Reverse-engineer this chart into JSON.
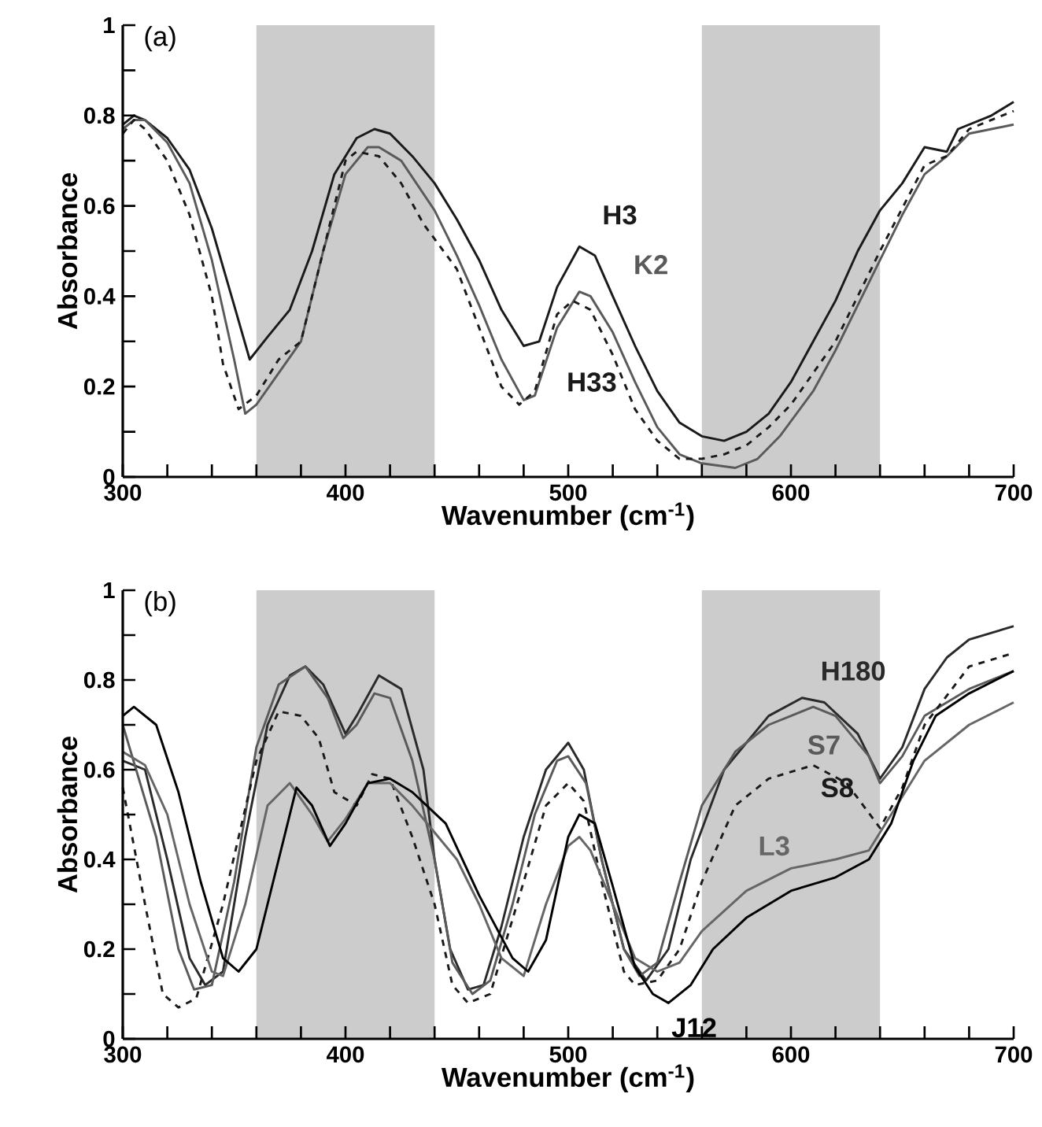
{
  "chart_data": [
    {
      "type": "line",
      "xlabel": "Wavenumber (cm$^{-1}$)",
      "ylabel": "Absorbance",
      "annotations": [
        "(a)"
      ],
      "xlim": [
        300,
        700
      ],
      "ylim": [
        0,
        1
      ],
      "xticks": [
        300,
        {
          "value": 320,
          "label": null
        },
        {
          "value": 340,
          "label": null
        },
        {
          "value": 360,
          "label": null
        },
        {
          "value": 380,
          "label": null
        },
        400,
        {
          "value": 420,
          "label": null
        },
        {
          "value": 440,
          "label": null
        },
        {
          "value": 460,
          "label": null
        },
        {
          "value": 480,
          "label": null
        },
        500,
        {
          "value": 520,
          "label": null
        },
        {
          "value": 540,
          "label": null
        },
        {
          "value": 560,
          "label": null
        },
        {
          "value": 580,
          "label": null
        },
        600,
        {
          "value": 620,
          "label": null
        },
        {
          "value": 640,
          "label": null
        },
        {
          "value": 660,
          "label": null
        },
        {
          "value": 680,
          "label": null
        },
        700
      ],
      "yticks": [
        0,
        {
          "value": 0.1,
          "label": null
        },
        {
          "value": 0.2,
          "label": "0.2"
        },
        {
          "value": 0.3,
          "label": null
        },
        {
          "value": 0.4,
          "label": "0.4"
        },
        {
          "value": 0.5,
          "label": null
        },
        {
          "value": 0.6,
          "label": "0.6"
        },
        {
          "value": 0.7,
          "label": null
        },
        {
          "value": 0.8,
          "label": "0.8"
        },
        {
          "value": 0.9,
          "label": null
        },
        1
      ],
      "bands": [
        {
          "axis": "x",
          "from": 360,
          "to": 440,
          "color": "#cccccc"
        },
        {
          "axis": "x",
          "from": 560,
          "to": 640,
          "color": "#cccccc"
        }
      ],
      "grid": false,
      "marker": "none",
      "series": [
        {
          "name": "H3",
          "color": "#1a1a1a",
          "line_style": "solid",
          "x": [
            300,
            305,
            310,
            320,
            330,
            340,
            350,
            357,
            365,
            375,
            385,
            395,
            405,
            413,
            420,
            430,
            440,
            450,
            460,
            470,
            480,
            487,
            495,
            505,
            512,
            520,
            530,
            540,
            550,
            560,
            570,
            580,
            590,
            600,
            610,
            620,
            630,
            640,
            650,
            660,
            670,
            675,
            690,
            700
          ],
          "values": [
            0.78,
            0.8,
            0.79,
            0.75,
            0.68,
            0.55,
            0.38,
            0.26,
            0.31,
            0.37,
            0.5,
            0.67,
            0.75,
            0.77,
            0.76,
            0.71,
            0.65,
            0.57,
            0.48,
            0.37,
            0.29,
            0.3,
            0.42,
            0.51,
            0.49,
            0.4,
            0.29,
            0.19,
            0.12,
            0.09,
            0.08,
            0.1,
            0.14,
            0.21,
            0.3,
            0.39,
            0.5,
            0.59,
            0.65,
            0.73,
            0.72,
            0.77,
            0.8,
            0.83
          ]
        },
        {
          "name": "K2",
          "color": "#5a5a5a",
          "line_style": "solid",
          "x": [
            300,
            305,
            310,
            320,
            330,
            340,
            350,
            355,
            360,
            370,
            380,
            390,
            400,
            410,
            415,
            425,
            440,
            450,
            460,
            470,
            480,
            485,
            495,
            505,
            510,
            520,
            530,
            540,
            550,
            560,
            575,
            585,
            595,
            610,
            620,
            630,
            640,
            650,
            660,
            670,
            680,
            690,
            700
          ],
          "values": [
            0.77,
            0.79,
            0.79,
            0.74,
            0.65,
            0.48,
            0.26,
            0.14,
            0.16,
            0.23,
            0.3,
            0.5,
            0.67,
            0.73,
            0.73,
            0.7,
            0.59,
            0.49,
            0.38,
            0.26,
            0.17,
            0.18,
            0.33,
            0.41,
            0.4,
            0.32,
            0.21,
            0.11,
            0.05,
            0.03,
            0.02,
            0.04,
            0.09,
            0.19,
            0.28,
            0.38,
            0.48,
            0.58,
            0.67,
            0.71,
            0.76,
            0.77,
            0.78
          ]
        },
        {
          "name": "H33",
          "color": "#1a1a1a",
          "line_style": "dashed",
          "x": [
            300,
            305,
            310,
            320,
            330,
            340,
            345,
            352,
            360,
            370,
            380,
            390,
            400,
            405,
            415,
            425,
            435,
            450,
            460,
            470,
            478,
            485,
            495,
            502,
            510,
            520,
            530,
            540,
            550,
            560,
            570,
            580,
            590,
            600,
            620,
            640,
            660,
            670,
            680,
            700
          ],
          "values": [
            0.76,
            0.79,
            0.77,
            0.7,
            0.58,
            0.4,
            0.25,
            0.15,
            0.18,
            0.26,
            0.3,
            0.5,
            0.7,
            0.72,
            0.71,
            0.65,
            0.56,
            0.46,
            0.33,
            0.2,
            0.16,
            0.19,
            0.36,
            0.39,
            0.37,
            0.27,
            0.15,
            0.08,
            0.04,
            0.04,
            0.05,
            0.07,
            0.11,
            0.16,
            0.3,
            0.5,
            0.69,
            0.71,
            0.77,
            0.81
          ]
        }
      ]
    },
    {
      "type": "line",
      "xlabel": "Wavenumber (cm$^{-1}$)",
      "ylabel": "Absorbance",
      "annotations": [
        "(b)"
      ],
      "xlim": [
        300,
        700
      ],
      "ylim": [
        0,
        1
      ],
      "xticks": [
        300,
        {
          "value": 320,
          "label": null
        },
        {
          "value": 340,
          "label": null
        },
        {
          "value": 360,
          "label": null
        },
        {
          "value": 380,
          "label": null
        },
        400,
        {
          "value": 420,
          "label": null
        },
        {
          "value": 440,
          "label": null
        },
        {
          "value": 460,
          "label": null
        },
        {
          "value": 480,
          "label": null
        },
        500,
        {
          "value": 520,
          "label": null
        },
        {
          "value": 540,
          "label": null
        },
        {
          "value": 560,
          "label": null
        },
        {
          "value": 580,
          "label": null
        },
        600,
        {
          "value": 620,
          "label": null
        },
        {
          "value": 640,
          "label": null
        },
        {
          "value": 660,
          "label": null
        },
        {
          "value": 680,
          "label": null
        },
        700
      ],
      "yticks": [
        0,
        {
          "value": 0.1,
          "label": null
        },
        {
          "value": 0.2,
          "label": "0.2"
        },
        {
          "value": 0.3,
          "label": null
        },
        {
          "value": 0.4,
          "label": "0.4"
        },
        {
          "value": 0.5,
          "label": null
        },
        {
          "value": 0.6,
          "label": "0.6"
        },
        {
          "value": 0.7,
          "label": null
        },
        {
          "value": 0.8,
          "label": "0.8"
        },
        {
          "value": 0.9,
          "label": null
        },
        1
      ],
      "bands": [
        {
          "axis": "x",
          "from": 360,
          "to": 440,
          "color": "#cccccc"
        },
        {
          "axis": "x",
          "from": 560,
          "to": 640,
          "color": "#cccccc"
        }
      ],
      "grid": false,
      "marker": "none",
      "series": [
        {
          "name": "H180",
          "color": "#2a2a2a",
          "line_style": "solid",
          "x": [
            300,
            310,
            320,
            330,
            337,
            345,
            355,
            365,
            375,
            382,
            390,
            400,
            405,
            415,
            425,
            435,
            440,
            447,
            455,
            462,
            470,
            480,
            490,
            500,
            507,
            515,
            525,
            535,
            545,
            555,
            570,
            590,
            605,
            615,
            630,
            640,
            650,
            660,
            670,
            680,
            700
          ],
          "values": [
            0.62,
            0.6,
            0.4,
            0.18,
            0.12,
            0.15,
            0.45,
            0.7,
            0.81,
            0.83,
            0.79,
            0.68,
            0.72,
            0.81,
            0.78,
            0.6,
            0.4,
            0.2,
            0.11,
            0.12,
            0.25,
            0.45,
            0.6,
            0.66,
            0.6,
            0.4,
            0.2,
            0.13,
            0.2,
            0.4,
            0.6,
            0.72,
            0.76,
            0.75,
            0.68,
            0.58,
            0.65,
            0.78,
            0.85,
            0.89,
            0.92
          ]
        },
        {
          "name": "S7",
          "color": "#5a5a5a",
          "line_style": "solid",
          "x": [
            300,
            315,
            325,
            332,
            340,
            350,
            360,
            370,
            382,
            392,
            399,
            405,
            413,
            420,
            430,
            440,
            448,
            457,
            465,
            475,
            485,
            495,
            500,
            508,
            515,
            525,
            532,
            540,
            550,
            560,
            575,
            590,
            610,
            620,
            635,
            640,
            650,
            660,
            680,
            700
          ],
          "values": [
            0.7,
            0.45,
            0.2,
            0.11,
            0.12,
            0.35,
            0.65,
            0.79,
            0.83,
            0.76,
            0.67,
            0.7,
            0.77,
            0.76,
            0.62,
            0.4,
            0.17,
            0.1,
            0.13,
            0.3,
            0.5,
            0.62,
            0.63,
            0.57,
            0.4,
            0.2,
            0.14,
            0.17,
            0.35,
            0.52,
            0.64,
            0.7,
            0.74,
            0.72,
            0.63,
            0.57,
            0.63,
            0.72,
            0.78,
            0.82
          ]
        },
        {
          "name": "S8",
          "color": "#1a1a1a",
          "line_style": "dashed",
          "x": [
            300,
            310,
            318,
            325,
            333,
            345,
            360,
            370,
            380,
            388,
            395,
            405,
            412,
            420,
            430,
            440,
            448,
            455,
            465,
            480,
            490,
            500,
            507,
            515,
            525,
            530,
            540,
            550,
            560,
            575,
            590,
            610,
            625,
            640,
            650,
            660,
            680,
            700
          ],
          "values": [
            0.56,
            0.3,
            0.1,
            0.07,
            0.09,
            0.3,
            0.62,
            0.73,
            0.72,
            0.67,
            0.55,
            0.52,
            0.59,
            0.58,
            0.45,
            0.3,
            0.12,
            0.08,
            0.1,
            0.35,
            0.52,
            0.57,
            0.53,
            0.35,
            0.15,
            0.12,
            0.13,
            0.2,
            0.35,
            0.52,
            0.58,
            0.61,
            0.57,
            0.47,
            0.56,
            0.7,
            0.83,
            0.86
          ]
        },
        {
          "name": "L3",
          "color": "#666666",
          "line_style": "solid",
          "x": [
            300,
            310,
            320,
            330,
            340,
            345,
            355,
            365,
            375,
            385,
            392,
            400,
            410,
            420,
            430,
            440,
            450,
            460,
            470,
            480,
            490,
            500,
            505,
            510,
            520,
            530,
            540,
            550,
            560,
            580,
            600,
            620,
            635,
            645,
            660,
            680,
            700
          ],
          "values": [
            0.64,
            0.61,
            0.5,
            0.3,
            0.15,
            0.14,
            0.3,
            0.52,
            0.57,
            0.5,
            0.44,
            0.49,
            0.57,
            0.57,
            0.52,
            0.46,
            0.4,
            0.3,
            0.18,
            0.14,
            0.3,
            0.43,
            0.45,
            0.42,
            0.3,
            0.18,
            0.15,
            0.17,
            0.24,
            0.33,
            0.38,
            0.4,
            0.42,
            0.5,
            0.62,
            0.7,
            0.75
          ]
        },
        {
          "name": "J12",
          "color": "#000000",
          "line_style": "solid",
          "x": [
            300,
            305,
            315,
            325,
            335,
            345,
            352,
            360,
            370,
            378,
            385,
            393,
            400,
            410,
            420,
            430,
            445,
            460,
            475,
            482,
            490,
            500,
            505,
            512,
            520,
            530,
            538,
            545,
            555,
            565,
            580,
            600,
            620,
            635,
            645,
            655,
            665,
            680,
            700
          ],
          "values": [
            0.72,
            0.74,
            0.7,
            0.55,
            0.35,
            0.18,
            0.15,
            0.2,
            0.4,
            0.56,
            0.52,
            0.43,
            0.48,
            0.57,
            0.58,
            0.55,
            0.48,
            0.32,
            0.18,
            0.15,
            0.22,
            0.45,
            0.5,
            0.48,
            0.34,
            0.16,
            0.1,
            0.08,
            0.12,
            0.2,
            0.27,
            0.33,
            0.36,
            0.4,
            0.48,
            0.62,
            0.72,
            0.77,
            0.82
          ]
        }
      ]
    }
  ]
}
